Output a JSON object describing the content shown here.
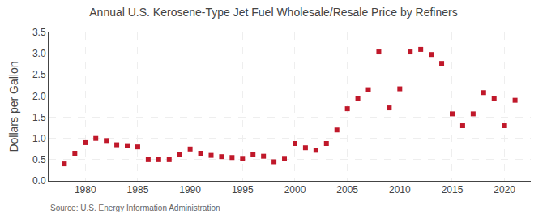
{
  "chart_data": {
    "type": "scatter",
    "title": "Annual U.S. Kerosene-Type Jet Fuel Wholesale/Resale Price by Refiners",
    "y_label": "Dollars per Gallon",
    "annotations": [
      "Source: U.S. Energy Information Administration"
    ],
    "x": [
      1978,
      1979,
      1980,
      1981,
      1982,
      1983,
      1984,
      1985,
      1986,
      1987,
      1988,
      1989,
      1990,
      1991,
      1992,
      1993,
      1994,
      1995,
      1996,
      1997,
      1998,
      1999,
      2000,
      2001,
      2002,
      2003,
      2004,
      2005,
      2006,
      2007,
      2008,
      2009,
      2010,
      2011,
      2012,
      2013,
      2014,
      2015,
      2016,
      2017,
      2018,
      2019,
      2020,
      2021
    ],
    "values": [
      0.4,
      0.65,
      0.9,
      1.0,
      0.95,
      0.85,
      0.83,
      0.8,
      0.5,
      0.5,
      0.5,
      0.62,
      0.75,
      0.65,
      0.6,
      0.57,
      0.55,
      0.53,
      0.63,
      0.58,
      0.45,
      0.53,
      0.88,
      0.78,
      0.72,
      0.88,
      1.2,
      1.7,
      1.95,
      2.15,
      3.04,
      1.72,
      2.17,
      3.04,
      3.1,
      2.98,
      2.77,
      1.58,
      1.3,
      1.58,
      2.08,
      1.95,
      1.3,
      1.9
    ],
    "color": "#c0182a",
    "marker": "square",
    "xlim": [
      1976.5,
      2022.5
    ],
    "xticks": [
      1980,
      1985,
      1990,
      1995,
      2000,
      2005,
      2010,
      2015,
      2020
    ],
    "ylim": [
      0.0,
      3.5
    ],
    "yticks": [
      {
        "value": 0.0,
        "label": "0.0"
      },
      0.5,
      {
        "value": 1.0,
        "label": "1.0"
      },
      1.5,
      {
        "value": 2.0,
        "label": "2.0"
      },
      2.5,
      {
        "value": 3.0,
        "label": "3.0"
      },
      3.5
    ],
    "grid": true
  }
}
